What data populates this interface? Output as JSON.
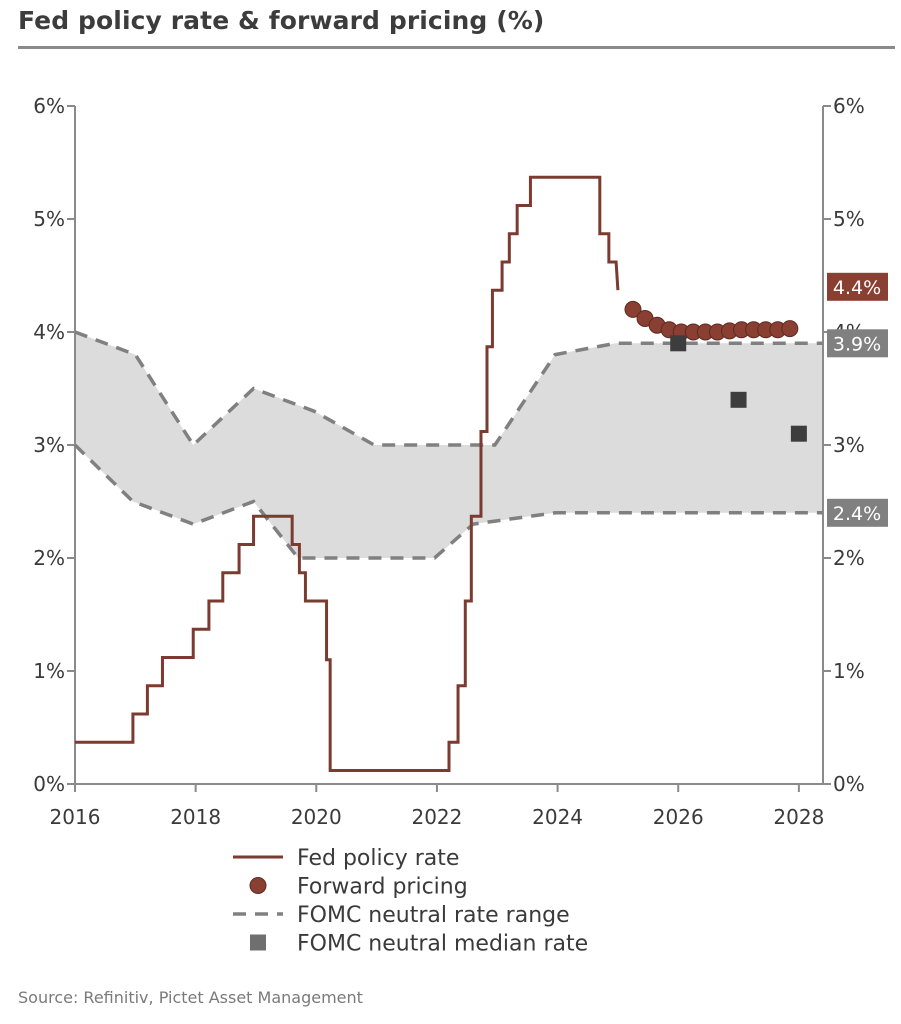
{
  "title": "Fed policy rate & forward pricing (%)",
  "source": "Source: Refinitiv, Pictet Asset Management",
  "chart_data": {
    "type": "line",
    "title": "Fed policy rate & forward pricing (%)",
    "xlim": [
      2016,
      2028.4
    ],
    "ylim": [
      0,
      6
    ],
    "x_ticks": [
      2016,
      2018,
      2020,
      2022,
      2024,
      2026,
      2028
    ],
    "x_tick_labels": [
      "2016",
      "2018",
      "2020",
      "2022",
      "2024",
      "2026",
      "2028"
    ],
    "y_ticks": [
      0,
      1,
      2,
      3,
      4,
      5,
      6
    ],
    "y_tick_labels_left": [
      "0%",
      "1%",
      "2%",
      "3%",
      "4%",
      "5%",
      "6%"
    ],
    "y_tick_labels_right": [
      "0%",
      "1%",
      "2%",
      "3%",
      "4%",
      "5%",
      "6%"
    ],
    "grid": false,
    "legend_position": "bottom",
    "colors": {
      "policy": "#7b3b30",
      "forward": "#8a3f33",
      "range": "#808080",
      "median": "#3d3d3d",
      "band": "#dcdcdc",
      "callout_red": "#8a3f33",
      "callout_grey": "#808080"
    },
    "series": [
      {
        "name": "Fed policy rate",
        "kind": "step-line",
        "points": [
          [
            2016.0,
            0.37
          ],
          [
            2016.96,
            0.37
          ],
          [
            2016.96,
            0.62
          ],
          [
            2017.2,
            0.62
          ],
          [
            2017.2,
            0.87
          ],
          [
            2017.45,
            0.87
          ],
          [
            2017.45,
            1.12
          ],
          [
            2017.96,
            1.12
          ],
          [
            2017.96,
            1.37
          ],
          [
            2018.22,
            1.37
          ],
          [
            2018.22,
            1.62
          ],
          [
            2018.45,
            1.62
          ],
          [
            2018.45,
            1.87
          ],
          [
            2018.72,
            1.87
          ],
          [
            2018.72,
            2.12
          ],
          [
            2018.96,
            2.12
          ],
          [
            2018.96,
            2.37
          ],
          [
            2019.6,
            2.37
          ],
          [
            2019.6,
            2.12
          ],
          [
            2019.72,
            2.12
          ],
          [
            2019.72,
            1.87
          ],
          [
            2019.82,
            1.87
          ],
          [
            2019.82,
            1.62
          ],
          [
            2020.17,
            1.62
          ],
          [
            2020.17,
            1.1
          ],
          [
            2020.23,
            1.1
          ],
          [
            2020.23,
            0.12
          ],
          [
            2022.2,
            0.12
          ],
          [
            2022.2,
            0.37
          ],
          [
            2022.35,
            0.37
          ],
          [
            2022.35,
            0.87
          ],
          [
            2022.47,
            0.87
          ],
          [
            2022.47,
            1.62
          ],
          [
            2022.57,
            1.62
          ],
          [
            2022.57,
            2.37
          ],
          [
            2022.73,
            2.37
          ],
          [
            2022.73,
            3.12
          ],
          [
            2022.83,
            3.12
          ],
          [
            2022.83,
            3.87
          ],
          [
            2022.92,
            3.87
          ],
          [
            2022.92,
            4.37
          ],
          [
            2023.08,
            4.37
          ],
          [
            2023.08,
            4.62
          ],
          [
            2023.2,
            4.62
          ],
          [
            2023.2,
            4.87
          ],
          [
            2023.33,
            4.87
          ],
          [
            2023.33,
            5.12
          ],
          [
            2023.55,
            5.12
          ],
          [
            2023.55,
            5.37
          ],
          [
            2024.7,
            5.37
          ],
          [
            2024.7,
            4.87
          ],
          [
            2024.85,
            4.87
          ],
          [
            2024.85,
            4.62
          ],
          [
            2024.97,
            4.62
          ],
          [
            2025.0,
            4.37
          ]
        ]
      },
      {
        "name": "Forward pricing",
        "kind": "markers",
        "points": [
          [
            2025.25,
            4.2
          ],
          [
            2025.45,
            4.12
          ],
          [
            2025.65,
            4.06
          ],
          [
            2025.85,
            4.02
          ],
          [
            2026.05,
            4.0
          ],
          [
            2026.25,
            4.0
          ],
          [
            2026.45,
            4.0
          ],
          [
            2026.65,
            4.0
          ],
          [
            2026.85,
            4.01
          ],
          [
            2027.05,
            4.02
          ],
          [
            2027.25,
            4.02
          ],
          [
            2027.45,
            4.02
          ],
          [
            2027.65,
            4.02
          ],
          [
            2027.85,
            4.03
          ]
        ]
      },
      {
        "name": "FOMC neutral rate range",
        "kind": "dashed-band",
        "upper": [
          [
            2016.0,
            4.0
          ],
          [
            2017.0,
            3.8
          ],
          [
            2017.96,
            3.0
          ],
          [
            2018.96,
            3.5
          ],
          [
            2019.96,
            3.3
          ],
          [
            2020.96,
            3.0
          ],
          [
            2022.96,
            3.0
          ],
          [
            2023.96,
            3.8
          ],
          [
            2024.96,
            3.9
          ],
          [
            2028.4,
            3.9
          ]
        ],
        "lower": [
          [
            2016.0,
            3.0
          ],
          [
            2016.96,
            2.5
          ],
          [
            2017.96,
            2.3
          ],
          [
            2018.96,
            2.5
          ],
          [
            2019.7,
            2.0
          ],
          [
            2020.2,
            2.0
          ],
          [
            2021.96,
            2.0
          ],
          [
            2022.6,
            2.3
          ],
          [
            2023.96,
            2.4
          ],
          [
            2028.4,
            2.4
          ]
        ]
      },
      {
        "name": "FOMC neutral median rate",
        "kind": "markers",
        "points": [
          [
            2026.0,
            3.9
          ],
          [
            2027.0,
            3.4
          ],
          [
            2028.0,
            3.1
          ]
        ]
      }
    ],
    "callouts": [
      {
        "text": "4.4%",
        "value": 4.4,
        "color": "#8a3f33"
      },
      {
        "text": "3.9%",
        "value": 3.9,
        "color": "#808080"
      },
      {
        "text": "2.4%",
        "value": 2.4,
        "color": "#808080"
      }
    ],
    "legend": [
      {
        "label": "Fed policy rate",
        "symbol": "line"
      },
      {
        "label": "Forward pricing",
        "symbol": "circle"
      },
      {
        "label": "FOMC neutral rate range",
        "symbol": "dash"
      },
      {
        "label": "FOMC neutral median rate",
        "symbol": "square"
      }
    ]
  }
}
